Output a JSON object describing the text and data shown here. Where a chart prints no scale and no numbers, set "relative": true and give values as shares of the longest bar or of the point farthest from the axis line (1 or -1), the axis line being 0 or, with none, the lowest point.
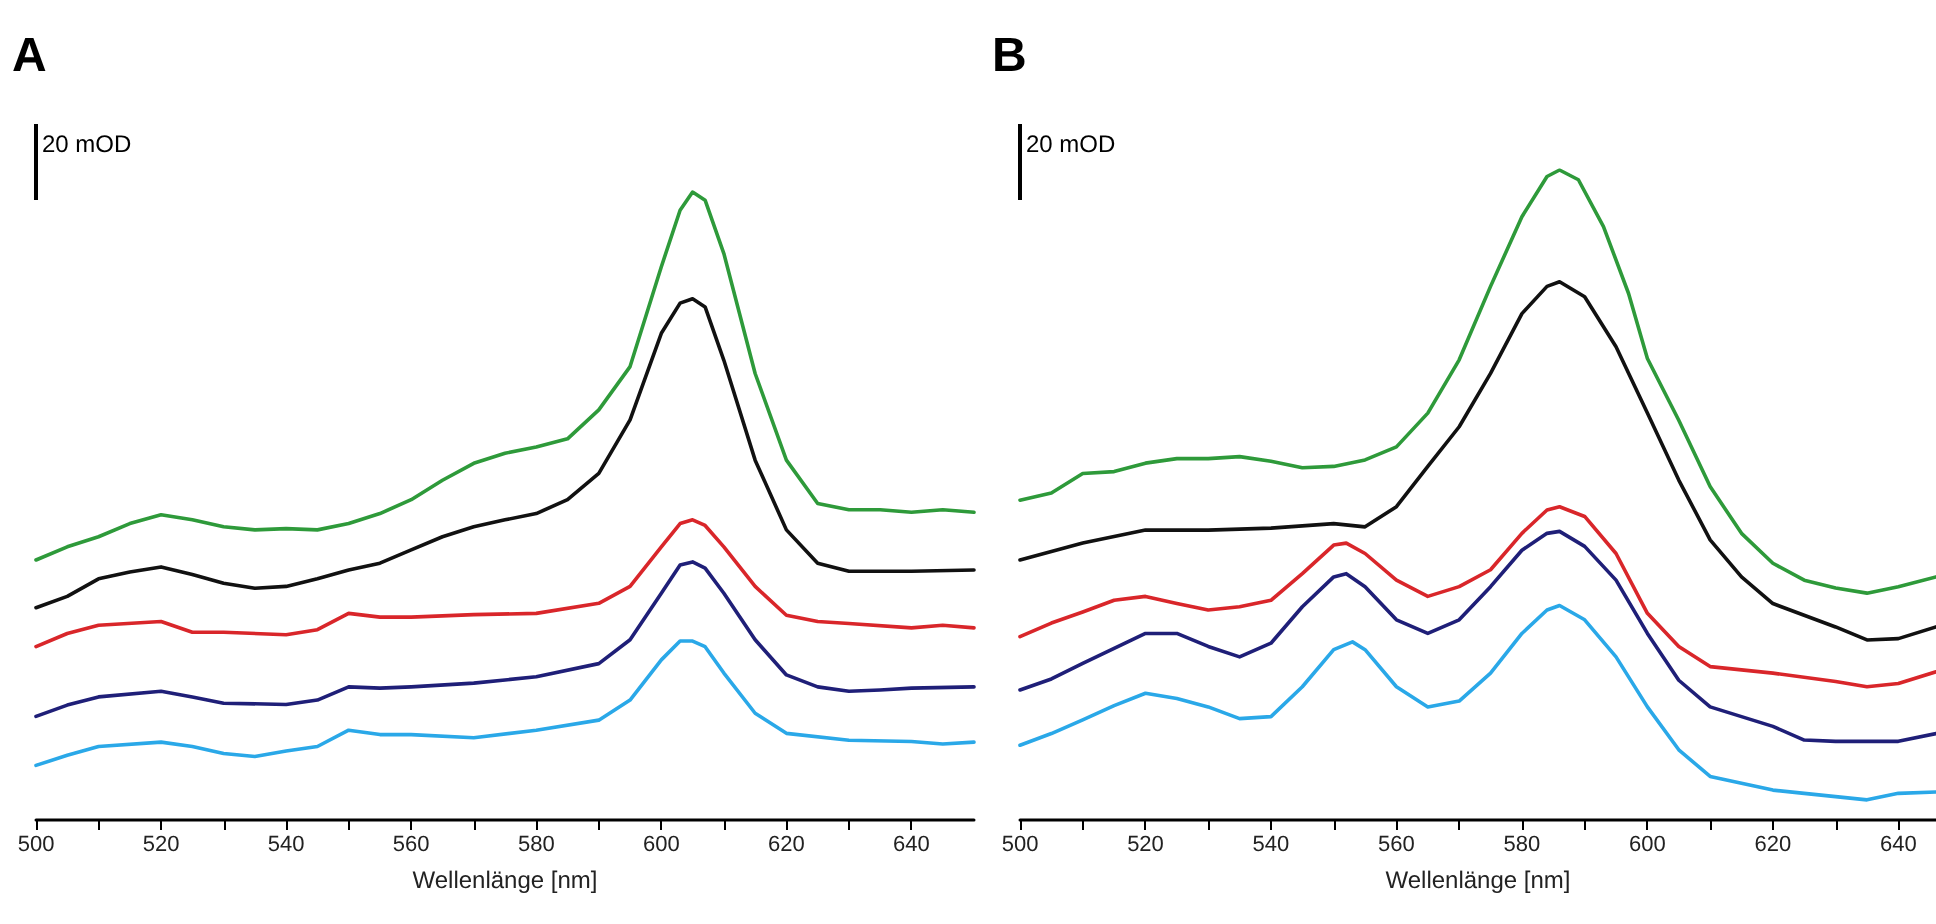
{
  "chart_data": [
    {
      "type": "line",
      "title": "A",
      "xlabel": "Wellenlänge [nm]",
      "relative": true,
      "annotations": [
        "20 mOD"
      ],
      "grid": false,
      "marker": "none",
      "line_style": "solid",
      "xlim": [
        500,
        650
      ],
      "xticks": [
        500,
        {
          "value": 510,
          "label": null
        },
        520,
        {
          "value": 530,
          "label": null
        },
        540,
        {
          "value": 550,
          "label": null
        },
        560,
        {
          "value": 570,
          "label": null
        },
        580,
        {
          "value": 590,
          "label": null
        },
        600,
        {
          "value": 610,
          "label": null
        },
        620,
        {
          "value": 630,
          "label": null
        },
        640
      ],
      "series": [
        {
          "color": "#2e9a3a",
          "x": [
            500,
            505,
            510,
            515,
            520,
            525,
            530,
            535,
            540,
            545,
            550,
            555,
            560,
            565,
            570,
            575,
            580,
            585,
            590,
            595,
            600,
            603,
            605,
            607,
            610,
            615,
            620,
            625,
            630,
            635,
            640,
            645,
            650
          ],
          "values": [
            0.414,
            0.435,
            0.451,
            0.472,
            0.486,
            0.478,
            0.467,
            0.462,
            0.464,
            0.462,
            0.472,
            0.488,
            0.51,
            0.541,
            0.568,
            0.584,
            0.594,
            0.607,
            0.653,
            0.722,
            0.881,
            0.971,
            1.0,
            0.987,
            0.902,
            0.711,
            0.573,
            0.504,
            0.494,
            0.494,
            0.49,
            0.494,
            0.49
          ]
        },
        {
          "color": "#111111",
          "x": [
            500,
            505,
            510,
            515,
            520,
            525,
            530,
            535,
            540,
            545,
            550,
            555,
            560,
            565,
            570,
            575,
            580,
            585,
            590,
            595,
            600,
            603,
            605,
            607,
            610,
            615,
            620,
            625,
            630,
            640,
            650
          ],
          "values": [
            0.338,
            0.356,
            0.384,
            0.395,
            0.403,
            0.391,
            0.377,
            0.369,
            0.372,
            0.384,
            0.398,
            0.409,
            0.43,
            0.451,
            0.467,
            0.478,
            0.488,
            0.51,
            0.552,
            0.637,
            0.775,
            0.823,
            0.83,
            0.817,
            0.732,
            0.573,
            0.462,
            0.409,
            0.396,
            0.396,
            0.398
          ]
        },
        {
          "color": "#d9262a",
          "x": [
            500,
            505,
            510,
            520,
            525,
            530,
            540,
            545,
            550,
            555,
            560,
            570,
            580,
            590,
            595,
            600,
            603,
            605,
            607,
            610,
            615,
            620,
            625,
            630,
            640,
            645,
            650
          ],
          "values": [
            0.276,
            0.297,
            0.31,
            0.316,
            0.299,
            0.299,
            0.295,
            0.303,
            0.329,
            0.323,
            0.323,
            0.327,
            0.329,
            0.345,
            0.372,
            0.435,
            0.472,
            0.478,
            0.469,
            0.435,
            0.372,
            0.326,
            0.316,
            0.313,
            0.306,
            0.31,
            0.306
          ]
        },
        {
          "color": "#1f1f78",
          "x": [
            500,
            505,
            510,
            520,
            525,
            530,
            540,
            545,
            550,
            555,
            560,
            570,
            580,
            590,
            595,
            600,
            603,
            605,
            607,
            610,
            615,
            620,
            625,
            630,
            635,
            640,
            650
          ],
          "values": [
            0.165,
            0.183,
            0.196,
            0.205,
            0.196,
            0.186,
            0.184,
            0.191,
            0.212,
            0.21,
            0.212,
            0.218,
            0.228,
            0.249,
            0.287,
            0.361,
            0.406,
            0.411,
            0.401,
            0.361,
            0.287,
            0.231,
            0.212,
            0.205,
            0.207,
            0.21,
            0.212
          ]
        },
        {
          "color": "#2aa8e8",
          "x": [
            500,
            505,
            510,
            520,
            525,
            530,
            535,
            540,
            545,
            550,
            555,
            560,
            570,
            580,
            590,
            595,
            600,
            603,
            605,
            607,
            610,
            615,
            620,
            630,
            640,
            645,
            650
          ],
          "values": [
            0.087,
            0.103,
            0.117,
            0.124,
            0.117,
            0.106,
            0.101,
            0.11,
            0.117,
            0.143,
            0.136,
            0.136,
            0.131,
            0.143,
            0.159,
            0.191,
            0.255,
            0.285,
            0.285,
            0.276,
            0.234,
            0.17,
            0.138,
            0.127,
            0.125,
            0.121,
            0.124
          ]
        }
      ]
    },
    {
      "type": "line",
      "title": "B",
      "xlabel": "Wellenlänge [nm]",
      "relative": true,
      "annotations": [
        "20 mOD"
      ],
      "grid": false,
      "marker": "none",
      "line_style": "solid",
      "xlim": [
        500,
        646
      ],
      "xticks": [
        500,
        {
          "value": 510,
          "label": null
        },
        520,
        {
          "value": 530,
          "label": null
        },
        540,
        {
          "value": 550,
          "label": null
        },
        560,
        {
          "value": 570,
          "label": null
        },
        580,
        {
          "value": 590,
          "label": null
        },
        600,
        {
          "value": 610,
          "label": null
        },
        620,
        {
          "value": 630,
          "label": null
        },
        640
      ],
      "series": [
        {
          "color": "#2e9a3a",
          "x": [
            500,
            505,
            510,
            515,
            520,
            525,
            530,
            535,
            540,
            545,
            550,
            555,
            560,
            565,
            570,
            575,
            580,
            584,
            586,
            589,
            593,
            597,
            600,
            605,
            610,
            615,
            620,
            625,
            630,
            635,
            640,
            646
          ],
          "values": [
            0.492,
            0.503,
            0.533,
            0.536,
            0.549,
            0.556,
            0.556,
            0.559,
            0.552,
            0.542,
            0.544,
            0.554,
            0.574,
            0.626,
            0.708,
            0.821,
            0.928,
            0.99,
            1.0,
            0.985,
            0.913,
            0.81,
            0.71,
            0.615,
            0.513,
            0.441,
            0.395,
            0.369,
            0.357,
            0.349,
            0.359,
            0.374
          ]
        },
        {
          "color": "#111111",
          "x": [
            500,
            510,
            520,
            530,
            540,
            550,
            555,
            560,
            565,
            570,
            575,
            580,
            584,
            586,
            590,
            595,
            600,
            605,
            610,
            615,
            620,
            630,
            635,
            640,
            646
          ],
          "values": [
            0.4,
            0.426,
            0.446,
            0.446,
            0.449,
            0.456,
            0.451,
            0.482,
            0.544,
            0.605,
            0.687,
            0.779,
            0.821,
            0.828,
            0.805,
            0.728,
            0.626,
            0.523,
            0.431,
            0.374,
            0.333,
            0.297,
            0.277,
            0.279,
            0.297
          ]
        },
        {
          "color": "#d9262a",
          "x": [
            500,
            505,
            510,
            515,
            520,
            525,
            530,
            535,
            540,
            545,
            550,
            552,
            555,
            560,
            565,
            570,
            575,
            580,
            584,
            586,
            590,
            595,
            600,
            605,
            610,
            620,
            630,
            635,
            640,
            646
          ],
          "values": [
            0.282,
            0.303,
            0.32,
            0.338,
            0.344,
            0.333,
            0.323,
            0.328,
            0.338,
            0.379,
            0.423,
            0.426,
            0.41,
            0.369,
            0.344,
            0.359,
            0.385,
            0.441,
            0.477,
            0.482,
            0.467,
            0.41,
            0.318,
            0.267,
            0.236,
            0.226,
            0.213,
            0.205,
            0.21,
            0.228
          ]
        },
        {
          "color": "#1f1f78",
          "x": [
            500,
            505,
            510,
            520,
            525,
            530,
            535,
            540,
            545,
            550,
            552,
            555,
            560,
            565,
            570,
            575,
            580,
            584,
            586,
            590,
            595,
            600,
            605,
            610,
            620,
            625,
            630,
            640,
            646
          ],
          "values": [
            0.2,
            0.217,
            0.241,
            0.287,
            0.287,
            0.267,
            0.251,
            0.272,
            0.328,
            0.374,
            0.379,
            0.359,
            0.308,
            0.287,
            0.308,
            0.359,
            0.415,
            0.441,
            0.444,
            0.421,
            0.369,
            0.287,
            0.215,
            0.174,
            0.144,
            0.123,
            0.121,
            0.121,
            0.133
          ]
        },
        {
          "color": "#2aa8e8",
          "x": [
            500,
            505,
            510,
            515,
            520,
            525,
            530,
            535,
            540,
            545,
            550,
            553,
            555,
            560,
            565,
            570,
            575,
            580,
            584,
            586,
            590,
            595,
            600,
            605,
            610,
            620,
            625,
            630,
            635,
            640,
            646
          ],
          "values": [
            0.115,
            0.133,
            0.154,
            0.176,
            0.195,
            0.187,
            0.174,
            0.156,
            0.159,
            0.205,
            0.262,
            0.274,
            0.262,
            0.205,
            0.174,
            0.183,
            0.226,
            0.287,
            0.323,
            0.33,
            0.308,
            0.251,
            0.174,
            0.108,
            0.067,
            0.046,
            0.041,
            0.036,
            0.031,
            0.041,
            0.043
          ]
        }
      ]
    }
  ]
}
